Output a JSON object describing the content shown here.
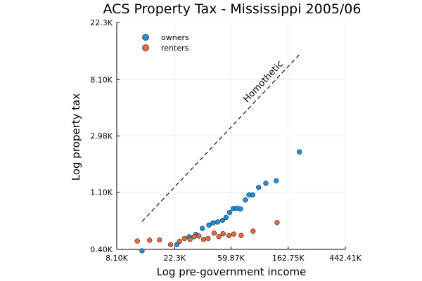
{
  "chart_data": {
    "type": "scatter",
    "title": "ACS Property Tax - Mississippi 2005/06",
    "xlabel": "Log pre-government income",
    "ylabel": "Log property tax",
    "x_scale": "log",
    "y_scale": "log",
    "xlim": [
      8100,
      442410
    ],
    "ylim": [
      400,
      22300
    ],
    "x_ticks": [
      {
        "value": 8100,
        "label": "8.10K"
      },
      {
        "value": 22300,
        "label": "22.3K"
      },
      {
        "value": 59870,
        "label": "59.87K"
      },
      {
        "value": 162750,
        "label": "162.75K"
      },
      {
        "value": 442410,
        "label": "442.41K"
      }
    ],
    "y_ticks": [
      {
        "value": 400,
        "label": "0.40K"
      },
      {
        "value": 1100,
        "label": "1.10K"
      },
      {
        "value": 2980,
        "label": "2.98K"
      },
      {
        "value": 8100,
        "label": "8.10K"
      },
      {
        "value": 22300,
        "label": "22.3K"
      }
    ],
    "grid": true,
    "legend_position": "top-left",
    "series": [
      {
        "name": "owners",
        "color": "#1f8fd8",
        "points": [
          {
            "x": 12600,
            "y": 390
          },
          {
            "x": 23200,
            "y": 435
          },
          {
            "x": 28800,
            "y": 500
          },
          {
            "x": 32300,
            "y": 522
          },
          {
            "x": 36200,
            "y": 580
          },
          {
            "x": 40600,
            "y": 615
          },
          {
            "x": 43700,
            "y": 640
          },
          {
            "x": 47300,
            "y": 650
          },
          {
            "x": 51600,
            "y": 670
          },
          {
            "x": 54900,
            "y": 705
          },
          {
            "x": 58400,
            "y": 770
          },
          {
            "x": 62200,
            "y": 825
          },
          {
            "x": 66300,
            "y": 830
          },
          {
            "x": 70600,
            "y": 820
          },
          {
            "x": 77000,
            "y": 960
          },
          {
            "x": 82000,
            "y": 1050
          },
          {
            "x": 87500,
            "y": 1050
          },
          {
            "x": 97000,
            "y": 1200
          },
          {
            "x": 110000,
            "y": 1290
          },
          {
            "x": 132000,
            "y": 1350
          },
          {
            "x": 198000,
            "y": 2250
          }
        ]
      },
      {
        "name": "renters",
        "color": "#e26a3e",
        "points": [
          {
            "x": 11600,
            "y": 464
          },
          {
            "x": 14400,
            "y": 470
          },
          {
            "x": 17100,
            "y": 473
          },
          {
            "x": 20800,
            "y": 435
          },
          {
            "x": 24300,
            "y": 462
          },
          {
            "x": 26500,
            "y": 485
          },
          {
            "x": 29200,
            "y": 477
          },
          {
            "x": 31500,
            "y": 502
          },
          {
            "x": 34100,
            "y": 507
          },
          {
            "x": 37100,
            "y": 477
          },
          {
            "x": 40100,
            "y": 486
          },
          {
            "x": 44500,
            "y": 533
          },
          {
            "x": 48400,
            "y": 502
          },
          {
            "x": 52100,
            "y": 528
          },
          {
            "x": 57700,
            "y": 510
          },
          {
            "x": 62800,
            "y": 525
          },
          {
            "x": 71400,
            "y": 512
          },
          {
            "x": 88000,
            "y": 552
          },
          {
            "x": 134000,
            "y": 644
          }
        ]
      }
    ],
    "reference_line": {
      "label": "Homothetic",
      "from": {
        "x": 12600,
        "y": 655
      },
      "to": {
        "x": 202000,
        "y": 12900
      }
    }
  }
}
